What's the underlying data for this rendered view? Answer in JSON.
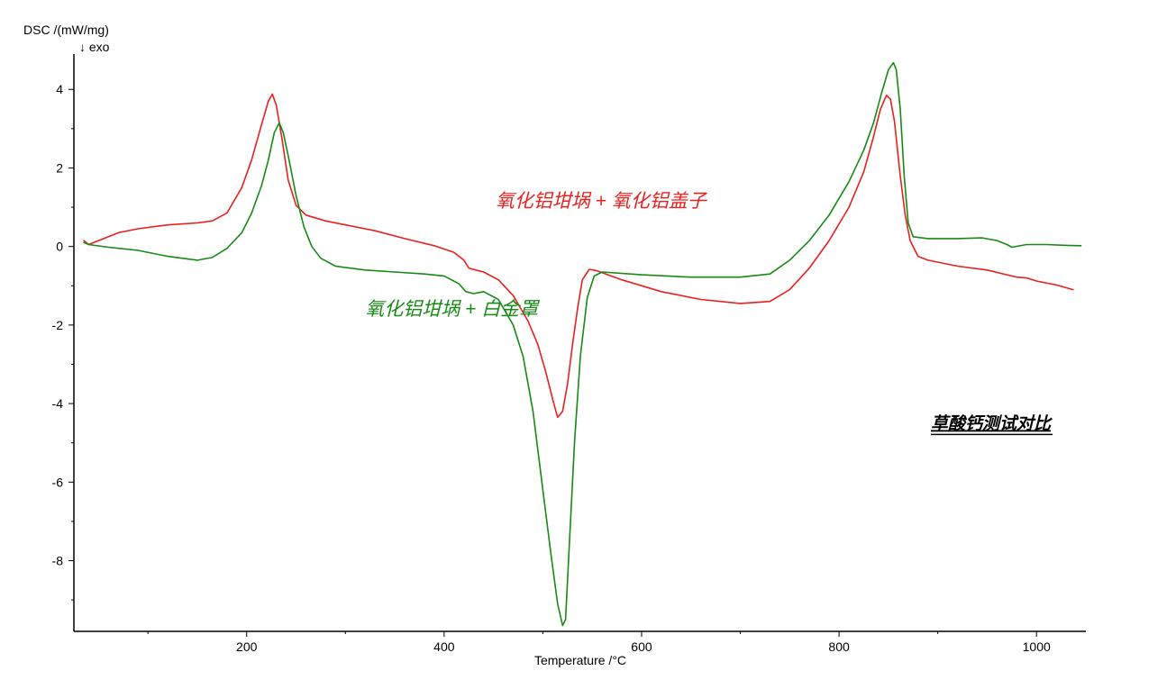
{
  "chart_data": {
    "type": "line",
    "title": "草酸钙测试对比",
    "xlabel": "Temperature /°C",
    "ylabel": "DSC /(mW/mg)",
    "ylabel_note": "↓ exo",
    "xlim": [
      25,
      1050
    ],
    "ylim": [
      -9.8,
      4.9
    ],
    "x_ticks": [
      200,
      400,
      600,
      800,
      1000
    ],
    "x_tick_labels": [
      "200",
      "400",
      "600",
      "800",
      "1000"
    ],
    "y_ticks": [
      4,
      2,
      0,
      -2,
      -4,
      -6,
      -8
    ],
    "y_tick_labels": [
      "4",
      "2",
      "0",
      "-2",
      "-4",
      "-6",
      "-8"
    ],
    "grid": false,
    "series": [
      {
        "name": "氧化铝坩埚 + 氧化铝盖子",
        "color": "#e8201e",
        "points": [
          [
            35,
            0.15
          ],
          [
            40,
            0.05
          ],
          [
            50,
            0.15
          ],
          [
            70,
            0.35
          ],
          [
            90,
            0.45
          ],
          [
            120,
            0.55
          ],
          [
            150,
            0.6
          ],
          [
            165,
            0.65
          ],
          [
            180,
            0.85
          ],
          [
            195,
            1.5
          ],
          [
            205,
            2.2
          ],
          [
            215,
            3.1
          ],
          [
            222,
            3.7
          ],
          [
            226,
            3.88
          ],
          [
            230,
            3.6
          ],
          [
            236,
            2.7
          ],
          [
            242,
            1.7
          ],
          [
            250,
            1.05
          ],
          [
            260,
            0.8
          ],
          [
            280,
            0.65
          ],
          [
            300,
            0.55
          ],
          [
            330,
            0.4
          ],
          [
            360,
            0.2
          ],
          [
            390,
            0.02
          ],
          [
            410,
            -0.15
          ],
          [
            420,
            -0.35
          ],
          [
            425,
            -0.55
          ],
          [
            432,
            -0.6
          ],
          [
            440,
            -0.65
          ],
          [
            455,
            -0.85
          ],
          [
            470,
            -1.25
          ],
          [
            485,
            -1.9
          ],
          [
            495,
            -2.5
          ],
          [
            503,
            -3.2
          ],
          [
            510,
            -3.9
          ],
          [
            515,
            -4.35
          ],
          [
            520,
            -4.2
          ],
          [
            525,
            -3.5
          ],
          [
            530,
            -2.5
          ],
          [
            535,
            -1.6
          ],
          [
            540,
            -0.85
          ],
          [
            547,
            -0.58
          ],
          [
            555,
            -0.62
          ],
          [
            580,
            -0.85
          ],
          [
            620,
            -1.15
          ],
          [
            660,
            -1.35
          ],
          [
            700,
            -1.45
          ],
          [
            730,
            -1.4
          ],
          [
            750,
            -1.1
          ],
          [
            770,
            -0.55
          ],
          [
            790,
            0.15
          ],
          [
            810,
            1.0
          ],
          [
            825,
            1.9
          ],
          [
            835,
            2.8
          ],
          [
            842,
            3.5
          ],
          [
            848,
            3.85
          ],
          [
            852,
            3.75
          ],
          [
            856,
            3.2
          ],
          [
            862,
            1.8
          ],
          [
            867,
            0.8
          ],
          [
            872,
            0.15
          ],
          [
            880,
            -0.25
          ],
          [
            890,
            -0.35
          ],
          [
            920,
            -0.5
          ],
          [
            950,
            -0.6
          ],
          [
            970,
            -0.72
          ],
          [
            980,
            -0.78
          ],
          [
            990,
            -0.8
          ],
          [
            1000,
            -0.88
          ],
          [
            1020,
            -0.98
          ],
          [
            1037,
            -1.1
          ]
        ]
      },
      {
        "name": "氧化铝坩埚 + 白金罩",
        "color": "#168a14",
        "points": [
          [
            35,
            0.1
          ],
          [
            40,
            0.05
          ],
          [
            60,
            -0.02
          ],
          [
            90,
            -0.1
          ],
          [
            120,
            -0.25
          ],
          [
            150,
            -0.35
          ],
          [
            165,
            -0.28
          ],
          [
            180,
            -0.05
          ],
          [
            195,
            0.35
          ],
          [
            205,
            0.85
          ],
          [
            215,
            1.55
          ],
          [
            222,
            2.2
          ],
          [
            228,
            2.9
          ],
          [
            233,
            3.15
          ],
          [
            237,
            2.9
          ],
          [
            243,
            2.2
          ],
          [
            250,
            1.3
          ],
          [
            258,
            0.5
          ],
          [
            266,
            0.0
          ],
          [
            275,
            -0.3
          ],
          [
            290,
            -0.5
          ],
          [
            320,
            -0.6
          ],
          [
            350,
            -0.65
          ],
          [
            380,
            -0.7
          ],
          [
            400,
            -0.75
          ],
          [
            415,
            -0.95
          ],
          [
            422,
            -1.15
          ],
          [
            430,
            -1.2
          ],
          [
            440,
            -1.15
          ],
          [
            455,
            -1.35
          ],
          [
            470,
            -2.0
          ],
          [
            480,
            -2.8
          ],
          [
            490,
            -4.2
          ],
          [
            500,
            -6.2
          ],
          [
            508,
            -7.8
          ],
          [
            515,
            -9.1
          ],
          [
            520,
            -9.65
          ],
          [
            523,
            -9.5
          ],
          [
            527,
            -7.5
          ],
          [
            532,
            -5.0
          ],
          [
            538,
            -2.8
          ],
          [
            545,
            -1.3
          ],
          [
            552,
            -0.75
          ],
          [
            560,
            -0.65
          ],
          [
            600,
            -0.72
          ],
          [
            650,
            -0.78
          ],
          [
            700,
            -0.78
          ],
          [
            730,
            -0.7
          ],
          [
            750,
            -0.35
          ],
          [
            770,
            0.15
          ],
          [
            790,
            0.8
          ],
          [
            810,
            1.65
          ],
          [
            825,
            2.45
          ],
          [
            835,
            3.15
          ],
          [
            843,
            3.9
          ],
          [
            850,
            4.5
          ],
          [
            855,
            4.68
          ],
          [
            858,
            4.5
          ],
          [
            862,
            3.5
          ],
          [
            866,
            1.8
          ],
          [
            870,
            0.6
          ],
          [
            875,
            0.25
          ],
          [
            890,
            0.2
          ],
          [
            920,
            0.2
          ],
          [
            945,
            0.22
          ],
          [
            960,
            0.15
          ],
          [
            970,
            0.05
          ],
          [
            975,
            -0.02
          ],
          [
            990,
            0.05
          ],
          [
            1010,
            0.05
          ],
          [
            1030,
            0.03
          ],
          [
            1045,
            0.02
          ]
        ]
      }
    ],
    "annotations": [
      {
        "text": "氧化铝坩埚 + 氧化铝盖子",
        "series": 0,
        "x": 452,
        "y": 1.0
      },
      {
        "text": "氧化铝坩埚 + 白金罩",
        "series": 1,
        "x": 320,
        "y": -1.75
      }
    ],
    "title_anchor": {
      "x": 893,
      "y": -4.65
    }
  }
}
